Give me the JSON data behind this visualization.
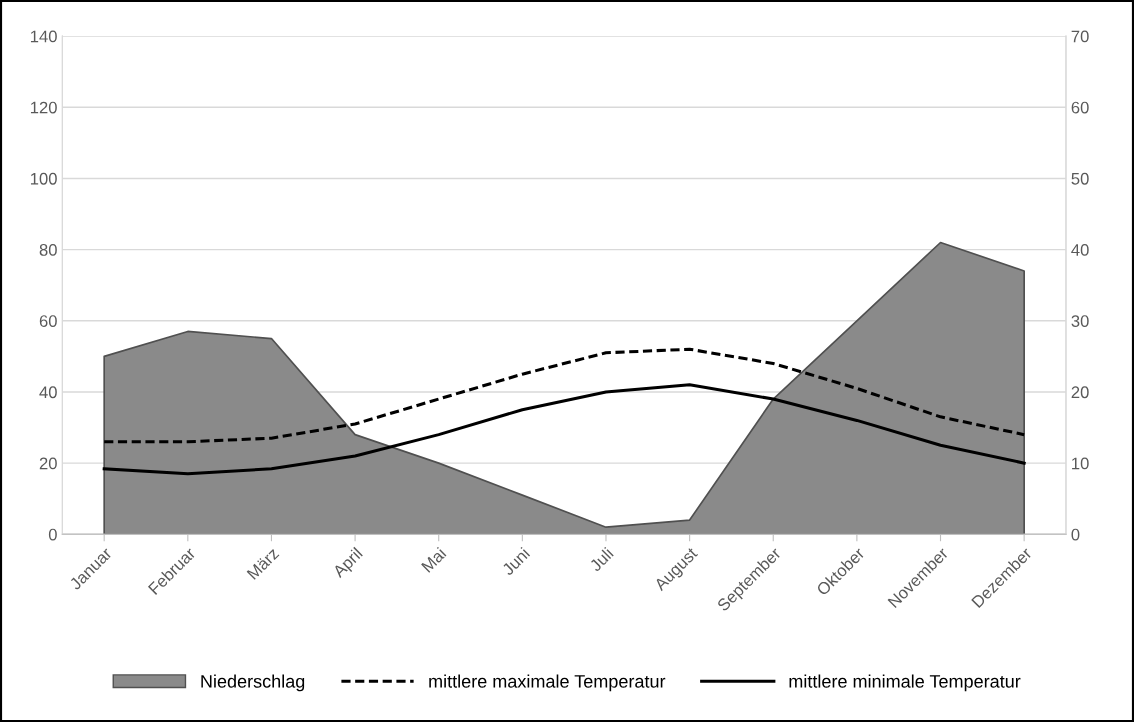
{
  "chart_data": {
    "type": "area",
    "categories": [
      "Januar",
      "Februar",
      "März",
      "April",
      "Mai",
      "Juni",
      "Juli",
      "August",
      "September",
      "Oktober",
      "November",
      "Dezember"
    ],
    "series": [
      {
        "name": "Niederschlag",
        "color": "#8a8a8a",
        "values": [
          50,
          57,
          55,
          28,
          20,
          11,
          2,
          4,
          38,
          60,
          82,
          74
        ]
      },
      {
        "name": "mittlere maximale Temperatur",
        "type": "line",
        "axis": "y2",
        "line_style": "dashed",
        "color": "#000000",
        "values": [
          13,
          13,
          13.5,
          15.5,
          19,
          22.5,
          25.5,
          26,
          24,
          20.5,
          16.5,
          14
        ]
      },
      {
        "name": "mittlere minimale Temperatur",
        "type": "line",
        "axis": "y2",
        "line_style": "solid",
        "color": "#000000",
        "values": [
          9.2,
          8.5,
          9.2,
          11,
          14,
          17.5,
          20,
          21,
          19,
          16,
          12.5,
          10
        ]
      }
    ],
    "ylim": [
      0,
      140
    ],
    "yticks": [
      0,
      20,
      40,
      60,
      80,
      100,
      120,
      140
    ],
    "y2lim": [
      0,
      70
    ],
    "y2ticks": [
      0,
      10,
      20,
      30,
      40,
      50,
      60,
      70
    ],
    "grid": "y",
    "legend": "bottom",
    "marker": "none"
  }
}
